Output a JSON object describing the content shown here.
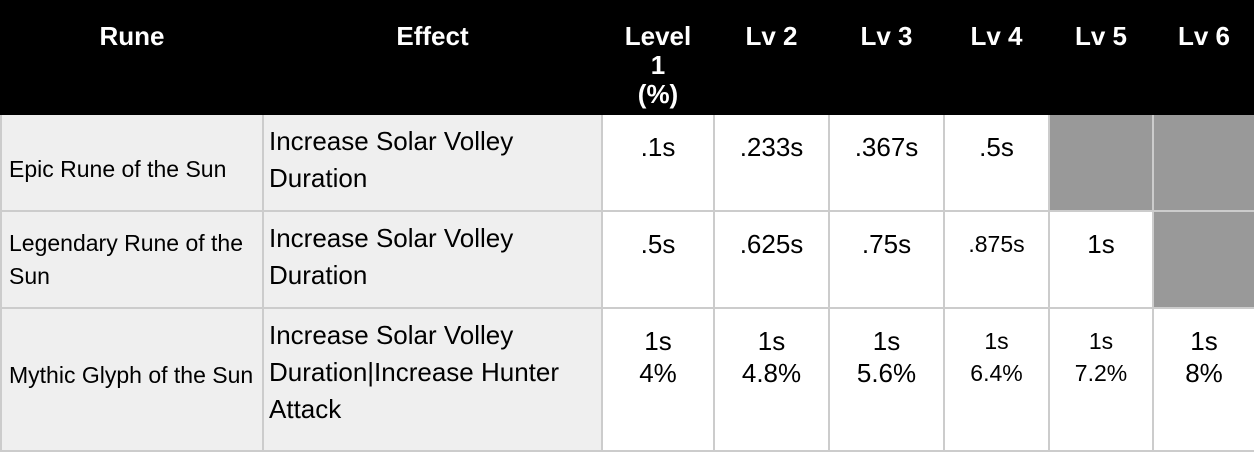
{
  "headers": {
    "rune": "Rune",
    "effect": "Effect",
    "level_1": "Level\n1\n(%)",
    "lv_2": "Lv 2",
    "lv_3": "Lv 3",
    "lv_4": "Lv 4",
    "lv_5": "Lv 5",
    "lv_6": "Lv 6"
  },
  "rows": [
    {
      "rune": "Epic Rune of the Sun",
      "effect": "Increase Solar Volley Duration",
      "levels": [
        ".1s",
        ".233s",
        ".367s",
        ".5s",
        "",
        ""
      ]
    },
    {
      "rune": "Legendary Rune of the Sun",
      "effect": "Increase Solar Volley Duration",
      "levels": [
        ".5s",
        ".625s",
        ".75s",
        ".875s",
        "1s",
        ""
      ]
    },
    {
      "rune": "Mythic Glyph of the Sun",
      "effect": "Increase Solar Volley Duration|Increase Hunter Attack",
      "levels": [
        "1s\n4%",
        "1s\n4.8%",
        "1s\n5.6%",
        "1s\n6.4%",
        "1s\n7.2%",
        "1s\n8%"
      ]
    }
  ],
  "colors": {
    "header_bg": "#000000",
    "header_text": "#ffffff",
    "label_cell_bg": "#efefef",
    "empty_cell_bg": "#999999",
    "grid": "#cccccc"
  }
}
